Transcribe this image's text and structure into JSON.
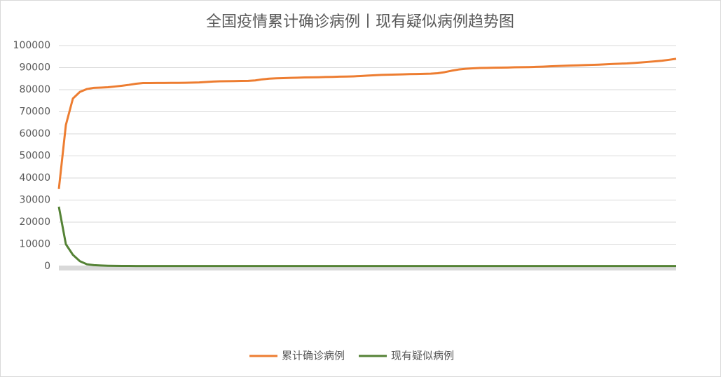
{
  "chart_data": {
    "type": "line",
    "title": "全国疫情累计确诊病例丨现有疑似病例趋势图",
    "categories": [
      null,
      null,
      null,
      null,
      null,
      null,
      null,
      null,
      null,
      null,
      null,
      null,
      null,
      null,
      null,
      null,
      null,
      null,
      null,
      null,
      null,
      null,
      null,
      null,
      null,
      null,
      null,
      null,
      null,
      null,
      null,
      null,
      null,
      null,
      null,
      null,
      null,
      null,
      null,
      null,
      null,
      null,
      null,
      null,
      null,
      null,
      null,
      null,
      null,
      null,
      null,
      null,
      null,
      null,
      null,
      null,
      null,
      null,
      null,
      null,
      null,
      null,
      null,
      null,
      null,
      null,
      null,
      null,
      null,
      null,
      null,
      null,
      null,
      null,
      null,
      null,
      null,
      null,
      null,
      null,
      null,
      null,
      null,
      null,
      null,
      null,
      null,
      null,
      null
    ],
    "series": [
      {
        "name": "累计确诊病例",
        "color": "#ed7d31",
        "values": [
          35000,
          64000,
          76000,
          79000,
          80300,
          80850,
          80950,
          81100,
          81450,
          81800,
          82200,
          82700,
          83000,
          83000,
          83050,
          83050,
          83100,
          83100,
          83150,
          83200,
          83300,
          83500,
          83700,
          83800,
          83850,
          83900,
          83950,
          84000,
          84200,
          84700,
          85000,
          85150,
          85250,
          85350,
          85450,
          85550,
          85600,
          85650,
          85750,
          85800,
          85900,
          85950,
          86050,
          86200,
          86400,
          86550,
          86700,
          86800,
          86850,
          86950,
          87050,
          87100,
          87200,
          87250,
          87450,
          87950,
          88600,
          89150,
          89500,
          89700,
          89850,
          89900,
          89950,
          90000,
          90050,
          90150,
          90200,
          90250,
          90350,
          90450,
          90600,
          90700,
          90850,
          90950,
          91050,
          91150,
          91250,
          91350,
          91500,
          91650,
          91800,
          91900,
          92100,
          92350,
          92600,
          92850,
          93150,
          93550,
          94000
        ]
      },
      {
        "name": "现有疑似病例",
        "color": "#548235",
        "values": [
          27000,
          10000,
          5200,
          2300,
          900,
          500,
          350,
          250,
          200,
          150,
          150,
          120,
          120,
          110,
          110,
          100,
          100,
          100,
          100,
          100,
          100,
          100,
          100,
          100,
          100,
          100,
          100,
          100,
          100,
          100,
          100,
          100,
          100,
          100,
          100,
          100,
          100,
          100,
          100,
          100,
          100,
          100,
          100,
          100,
          100,
          100,
          100,
          100,
          100,
          100,
          100,
          100,
          100,
          100,
          100,
          100,
          100,
          100,
          100,
          100,
          100,
          100,
          100,
          100,
          100,
          100,
          100,
          100,
          100,
          100,
          100,
          100,
          100,
          100,
          100,
          100,
          100,
          100,
          100,
          100,
          100,
          100,
          100,
          100,
          100,
          100,
          100,
          100,
          100
        ]
      }
    ],
    "ylim": [
      0,
      100000
    ],
    "yticks": [
      0,
      10000,
      20000,
      30000,
      40000,
      50000,
      60000,
      70000,
      80000,
      90000,
      100000
    ],
    "grid": true,
    "legend": "bottom"
  }
}
